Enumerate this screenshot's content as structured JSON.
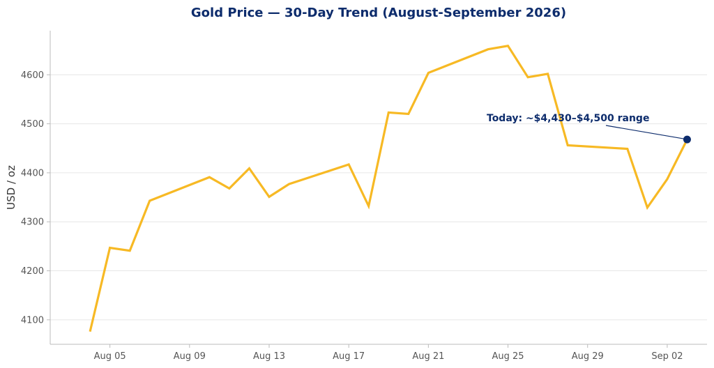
{
  "chart_data": {
    "type": "line",
    "title": "Gold Price — 30-Day Trend (August-September 2026)",
    "xlabel": "",
    "ylabel": "USD / oz",
    "x_tick_labels": [
      "Aug 05",
      "Aug 09",
      "Aug 13",
      "Aug 17",
      "Aug 21",
      "Aug 25",
      "Aug 29",
      "Sep 02"
    ],
    "x_tick_dates": [
      "2026-08-05",
      "2026-08-09",
      "2026-08-13",
      "2026-08-17",
      "2026-08-21",
      "2026-08-25",
      "2026-08-29",
      "2026-09-02"
    ],
    "y_ticks": [
      4100,
      4200,
      4300,
      4400,
      4500,
      4600
    ],
    "xlim": [
      "2026-08-02",
      "2026-09-04"
    ],
    "ylim": [
      4050,
      4690
    ],
    "grid": "horizontal",
    "series": [
      {
        "name": "",
        "color": "#F7B924",
        "points": [
          {
            "x": "2026-08-04",
            "y": 4076
          },
          {
            "x": "2026-08-05",
            "y": 4247
          },
          {
            "x": "2026-08-06",
            "y": 4241
          },
          {
            "x": "2026-08-07",
            "y": 4343
          },
          {
            "x": "2026-08-10",
            "y": 4391
          },
          {
            "x": "2026-08-11",
            "y": 4368
          },
          {
            "x": "2026-08-12",
            "y": 4409
          },
          {
            "x": "2026-08-13",
            "y": 4351
          },
          {
            "x": "2026-08-14",
            "y": 4377
          },
          {
            "x": "2026-08-17",
            "y": 4417
          },
          {
            "x": "2026-08-18",
            "y": 4332
          },
          {
            "x": "2026-08-19",
            "y": 4523
          },
          {
            "x": "2026-08-20",
            "y": 4520
          },
          {
            "x": "2026-08-21",
            "y": 4604
          },
          {
            "x": "2026-08-24",
            "y": 4652
          },
          {
            "x": "2026-08-25",
            "y": 4659
          },
          {
            "x": "2026-08-26",
            "y": 4595
          },
          {
            "x": "2026-08-27",
            "y": 4602
          },
          {
            "x": "2026-08-28",
            "y": 4456
          },
          {
            "x": "2026-08-31",
            "y": 4449
          },
          {
            "x": "2026-09-01",
            "y": 4329
          },
          {
            "x": "2026-09-02",
            "y": 4387
          },
          {
            "x": "2026-09-03",
            "y": 4468
          }
        ]
      }
    ],
    "annotation": {
      "text": "Today: ~$4,430–$4,500 range",
      "point": {
        "x": "2026-09-03",
        "y": 4468
      },
      "color": "#0D2C6C"
    },
    "title_color": "#0D2C6C",
    "grid_color": "#E6E6E6",
    "axis_color": "#BBBBBB"
  }
}
